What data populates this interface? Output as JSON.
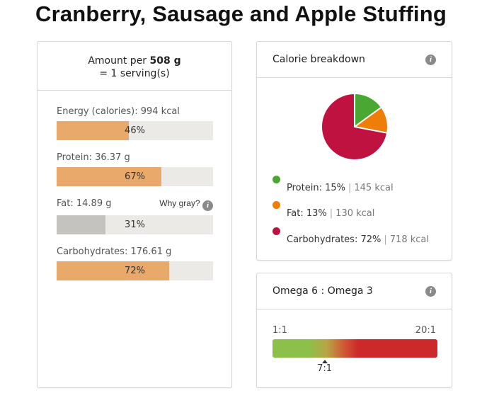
{
  "page": {
    "title": "Cranberry, Sausage and Apple Stuffing"
  },
  "nutrition": {
    "amount_prefix": "Amount per",
    "amount_value": "508 g",
    "serving_text": "= 1 serving(s)",
    "why_gray": "Why gray?",
    "info_glyph": "i",
    "nutrients": [
      {
        "label": "Energy (calories):",
        "value": "994 kcal",
        "percent": 46,
        "percent_text": "46%",
        "bar_color": "#e8a96a"
      },
      {
        "label": "Protein:",
        "value": "36.37 g",
        "percent": 67,
        "percent_text": "67%",
        "bar_color": "#e8a96a"
      },
      {
        "label": "Fat:",
        "value": "14.89 g",
        "percent": 31,
        "percent_text": "31%",
        "bar_color": "#c4c3c0"
      },
      {
        "label": "Carbohydrates:",
        "value": "176.61 g",
        "percent": 72,
        "percent_text": "72%",
        "bar_color": "#e8a96a"
      }
    ]
  },
  "calorie_breakdown": {
    "title": "Calorie breakdown",
    "info_glyph": "i",
    "items": [
      {
        "name": "Protein:",
        "percent": "15%",
        "kcal": "145 kcal",
        "color": "#4aa832"
      },
      {
        "name": "Fat:",
        "percent": "13%",
        "kcal": "130 kcal",
        "color": "#ef7d0a"
      },
      {
        "name": "Carbohydrates:",
        "percent": "72%",
        "kcal": "718 kcal",
        "color": "#bf1240"
      }
    ]
  },
  "chart_data": {
    "type": "pie",
    "categories": [
      "Protein",
      "Fat",
      "Carbohydrates"
    ],
    "values": [
      15,
      13,
      72
    ],
    "colors": [
      "#4aa832",
      "#ef7d0a",
      "#bf1240"
    ],
    "title": ""
  },
  "omega": {
    "title": "Omega 6 : Omega 3",
    "info_glyph": "i",
    "min_label": "1:1",
    "max_label": "20:1",
    "value_label": "7:1",
    "value_ratio": 7,
    "min_ratio": 1,
    "max_ratio": 20,
    "colors": {
      "low": "#8cc04a",
      "high": "#cc2a2a"
    }
  }
}
